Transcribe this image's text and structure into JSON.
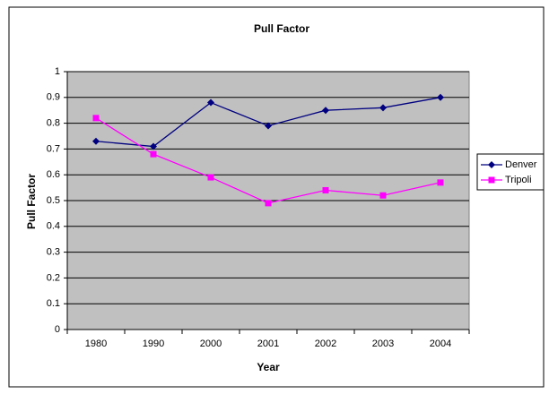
{
  "chart_data": {
    "type": "line",
    "title": "Pull Factor",
    "x_label": "Year",
    "y_label": "Pull Factor",
    "categories": [
      "1980",
      "1990",
      "2000",
      "2001",
      "2002",
      "2003",
      "2004"
    ],
    "series": [
      {
        "name": "Denver",
        "color": "#000080",
        "marker": "diamond",
        "values": [
          0.73,
          0.71,
          0.88,
          0.79,
          0.85,
          0.86,
          0.9
        ]
      },
      {
        "name": "Tripoli",
        "color": "#ff00ff",
        "marker": "square",
        "values": [
          0.82,
          0.68,
          0.59,
          0.49,
          0.54,
          0.52,
          0.57
        ]
      }
    ],
    "ylim": [
      0,
      1
    ],
    "yticks": [
      0,
      0.1,
      0.2,
      0.3,
      0.4,
      0.5,
      0.6,
      0.7,
      0.8,
      0.9,
      1
    ],
    "grid": true,
    "plot_background": "#c0c0c0",
    "legend": "right"
  }
}
